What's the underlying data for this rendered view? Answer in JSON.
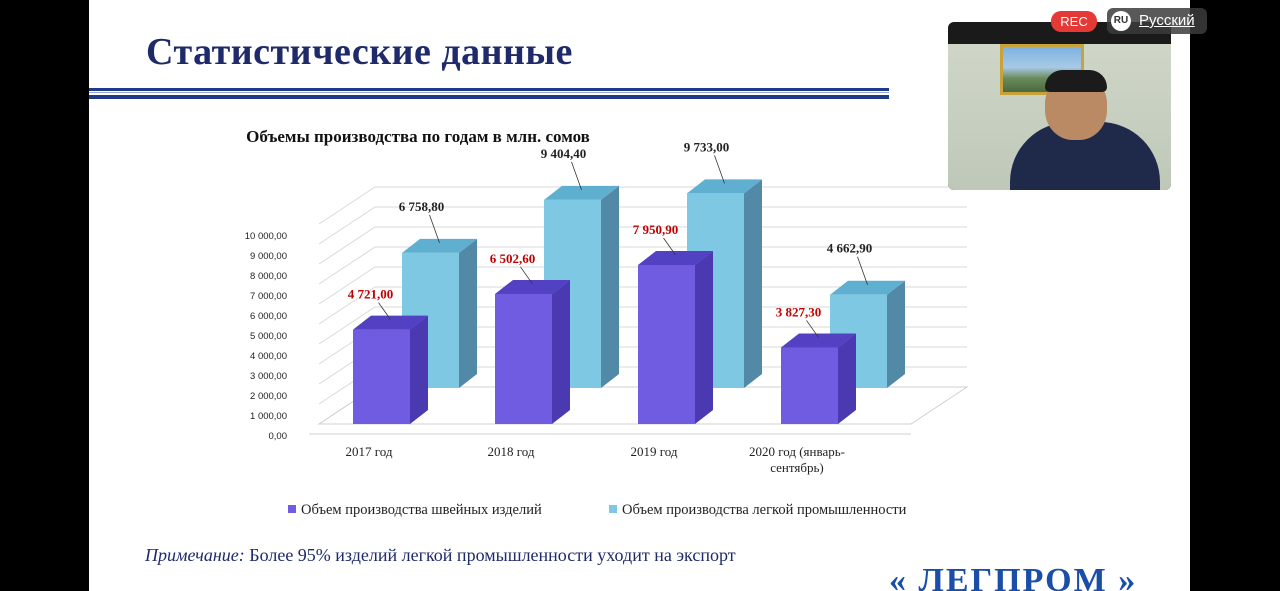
{
  "slide": {
    "title": "Статистические данные",
    "note_label": "Примечание:",
    "note_text": " Более 95% изделий легкой промышленности уходит на экспорт",
    "logo_text": "« ЛЕГПРОМ »"
  },
  "overlay": {
    "rec_label": "REC",
    "lang_code": "RU",
    "lang_label": "Русский"
  },
  "colors": {
    "title": "#1f2a6b",
    "series1_front": "#6f5ce0",
    "series1_top": "#5341c4",
    "series1_side": "#4a39b0",
    "series2_front": "#7ec8e3",
    "series2_top": "#5fb0d0",
    "series2_side": "#5289a6",
    "label1": "#c00000",
    "label2": "#222222",
    "rec": "#e53935"
  },
  "chart_data": {
    "type": "bar",
    "title": "Объемы производства по годам в млн. сомов",
    "categories": [
      "2017 год",
      "2018 год",
      "2019 год",
      "2020 год (январь-сентябрь)"
    ],
    "series": [
      {
        "name": "Объем производства швейных изделий",
        "values": [
          4721.0,
          6502.6,
          7950.9,
          3827.3
        ],
        "labels": [
          "4 721,00",
          "6 502,60",
          "7 950,90",
          "3 827,30"
        ]
      },
      {
        "name": "Объем производства легкой промышленности",
        "values": [
          6758.8,
          9404.4,
          9733.0,
          4662.9
        ],
        "labels": [
          "6 758,80",
          "9 404,40",
          "9 733,00",
          "4 662,90"
        ]
      }
    ],
    "ylim": [
      0,
      10000
    ],
    "yticks": [
      0,
      1000,
      2000,
      3000,
      4000,
      5000,
      6000,
      7000,
      8000,
      9000,
      10000
    ],
    "ytick_labels": [
      "0,00",
      "1 000,00",
      "2 000,00",
      "3 000,00",
      "4 000,00",
      "5 000,00",
      "6 000,00",
      "7 000,00",
      "8 000,00",
      "9 000,00",
      "10 000,00"
    ],
    "grid": true,
    "three_d": true,
    "legend_position": "bottom"
  }
}
